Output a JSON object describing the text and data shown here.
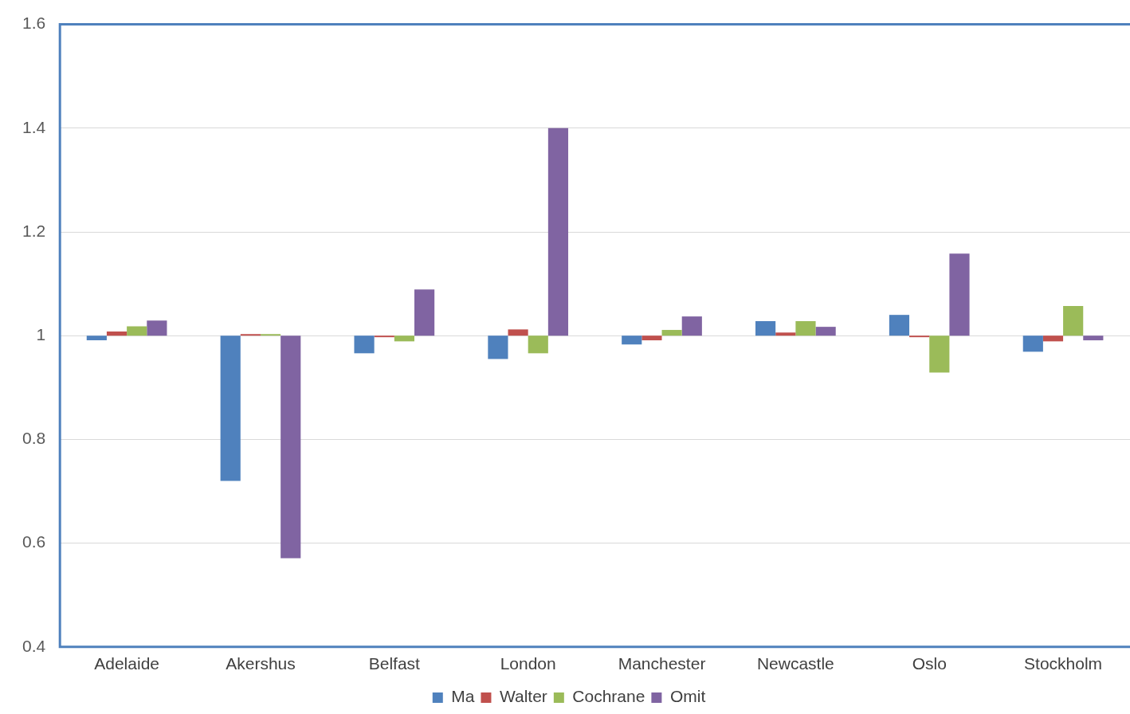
{
  "chart_data": {
    "type": "bar",
    "categories": [
      "Adelaide",
      "Akershus",
      "Belfast",
      "London",
      "Manchester",
      "Newcastle",
      "Oslo",
      "Stockholm"
    ],
    "series": [
      {
        "name": "Ma",
        "color": "#4f81bd",
        "base": [
          1,
          1,
          1,
          1,
          1,
          1,
          1,
          1
        ],
        "values": [
          -0.009,
          -0.28,
          -0.034,
          -0.045,
          -0.017,
          0.028,
          0.04,
          -0.031
        ]
      },
      {
        "name": "Walter",
        "color": "#c0504d",
        "base": [
          1,
          1,
          1,
          1,
          1,
          1,
          1,
          1
        ],
        "values": [
          0.008,
          0.003,
          -0.003,
          0.012,
          -0.009,
          0.006,
          -0.003,
          -0.011
        ]
      },
      {
        "name": "Cochrane",
        "color": "#9bbb59",
        "base": [
          1,
          1,
          1,
          1,
          1,
          1,
          1,
          1
        ],
        "values": [
          0.018,
          0.003,
          -0.011,
          -0.034,
          0.011,
          0.028,
          -0.071,
          0.057
        ]
      },
      {
        "name": "Omit",
        "color": "#8064a2",
        "base": [
          1,
          1,
          1,
          1,
          1,
          1,
          1,
          1
        ],
        "values": [
          0.029,
          -0.429,
          0.089,
          0.4,
          0.037,
          0.017,
          0.158,
          -0.009
        ]
      }
    ],
    "ylim": [
      0.4,
      1.6
    ],
    "yticks": [
      0.4,
      0.6,
      0.8,
      1,
      1.2,
      1.4,
      1.6
    ],
    "grid": "y",
    "legend": "bottom"
  }
}
